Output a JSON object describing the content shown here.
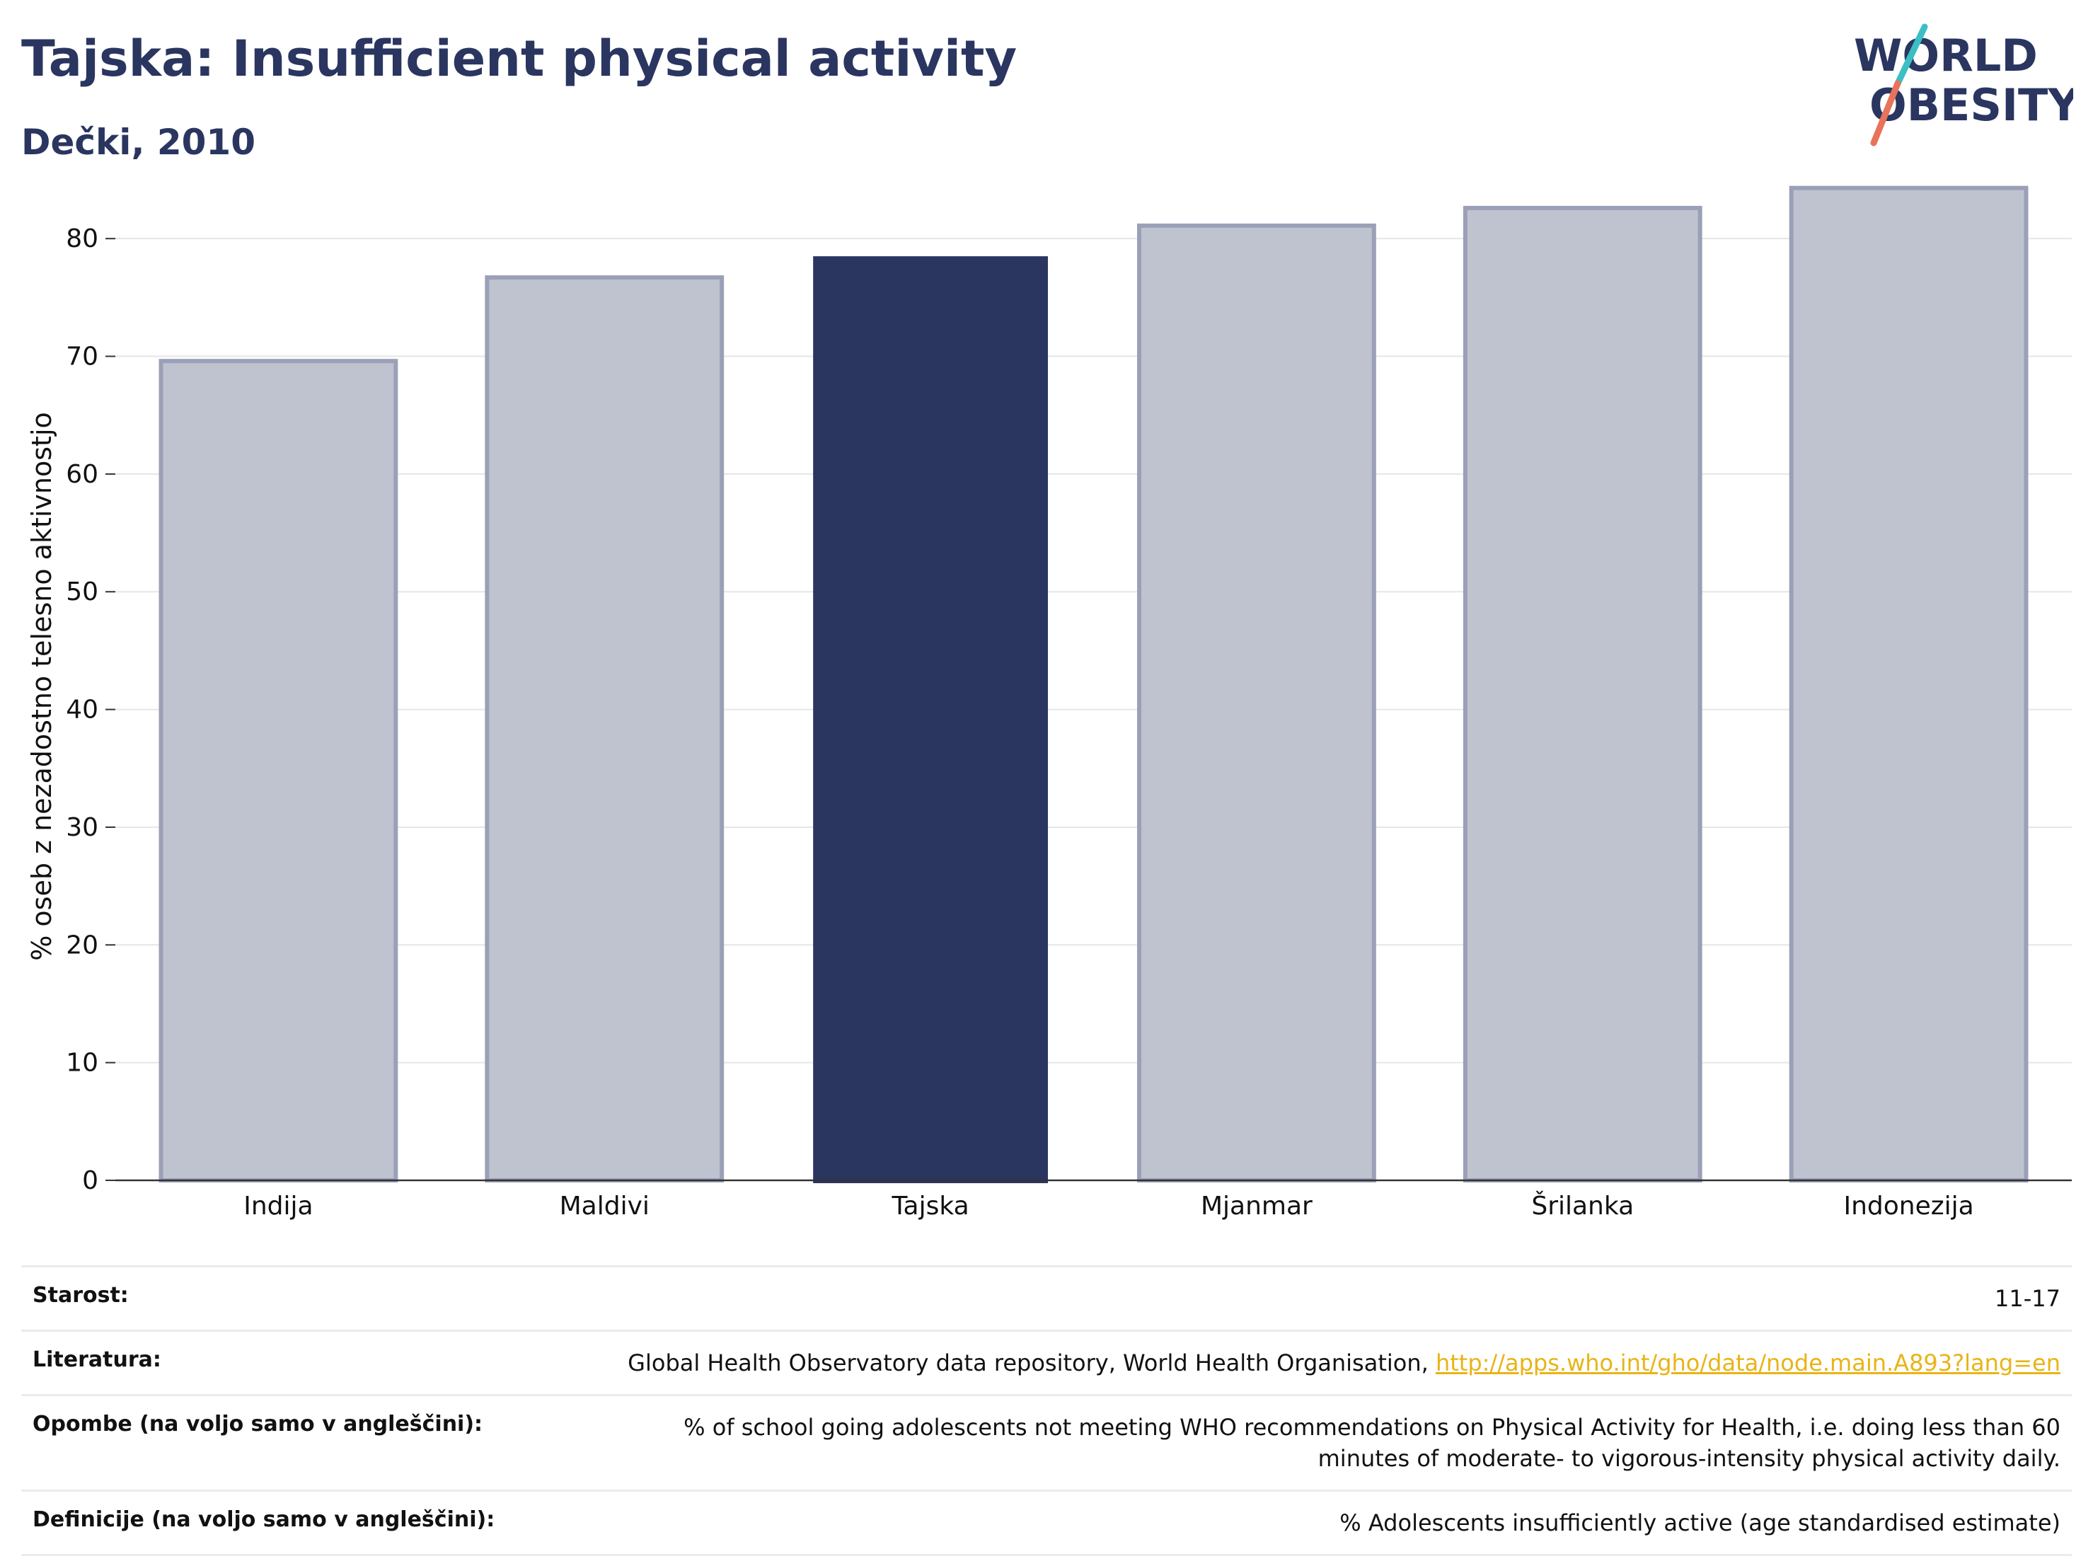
{
  "header": {
    "title": "Tajska: Insufficient physical activity",
    "subtitle": "Dečki, 2010"
  },
  "logo": {
    "line1": "WORLD",
    "line2": "OBESITY",
    "colors": {
      "text": "#2a3560",
      "slash_top": "#3bbfc4",
      "slash_bottom": "#e8735a"
    }
  },
  "colors": {
    "highlight_bar": "#2a3560",
    "other_bar_fill": "#bfc3cf",
    "other_bar_stroke": "#9aa0b7",
    "grid": "#e6e6e6",
    "link": "#e8b416"
  },
  "chart_data": {
    "type": "bar",
    "categories": [
      "Indija",
      "Maldivi",
      "Tajska",
      "Mjanmar",
      "Šrilanka",
      "Indonezija"
    ],
    "values": [
      69.6,
      76.7,
      78.5,
      81.1,
      82.6,
      84.3
    ],
    "highlight": "Tajska",
    "ylabel": "% oseb z nezadostno telesno aktivnostjo",
    "xlabel": "",
    "ylim": [
      0,
      85
    ],
    "yticks": [
      0,
      10,
      20,
      30,
      40,
      50,
      60,
      70,
      80
    ],
    "grid": true
  },
  "meta": {
    "age": {
      "label": "Starost:",
      "value": "11-17"
    },
    "references": {
      "label": "Literatura:",
      "value": "Global Health Observatory data repository, World Health Organisation, ",
      "link": "http://apps.who.int/gho/data/node.main.A893?lang=en"
    },
    "notes": {
      "label": "Opombe (na voljo samo v angleščini):",
      "value": "% of school going adolescents not meeting WHO recommendations on Physical Activity for Health, i.e. doing less than 60 minutes of moderate- to vigorous-intensity physical activity daily."
    },
    "definitions": {
      "label": "Definicije (na voljo samo v angleščini):",
      "value": "% Adolescents insufficiently active (age standardised estimate)"
    }
  }
}
